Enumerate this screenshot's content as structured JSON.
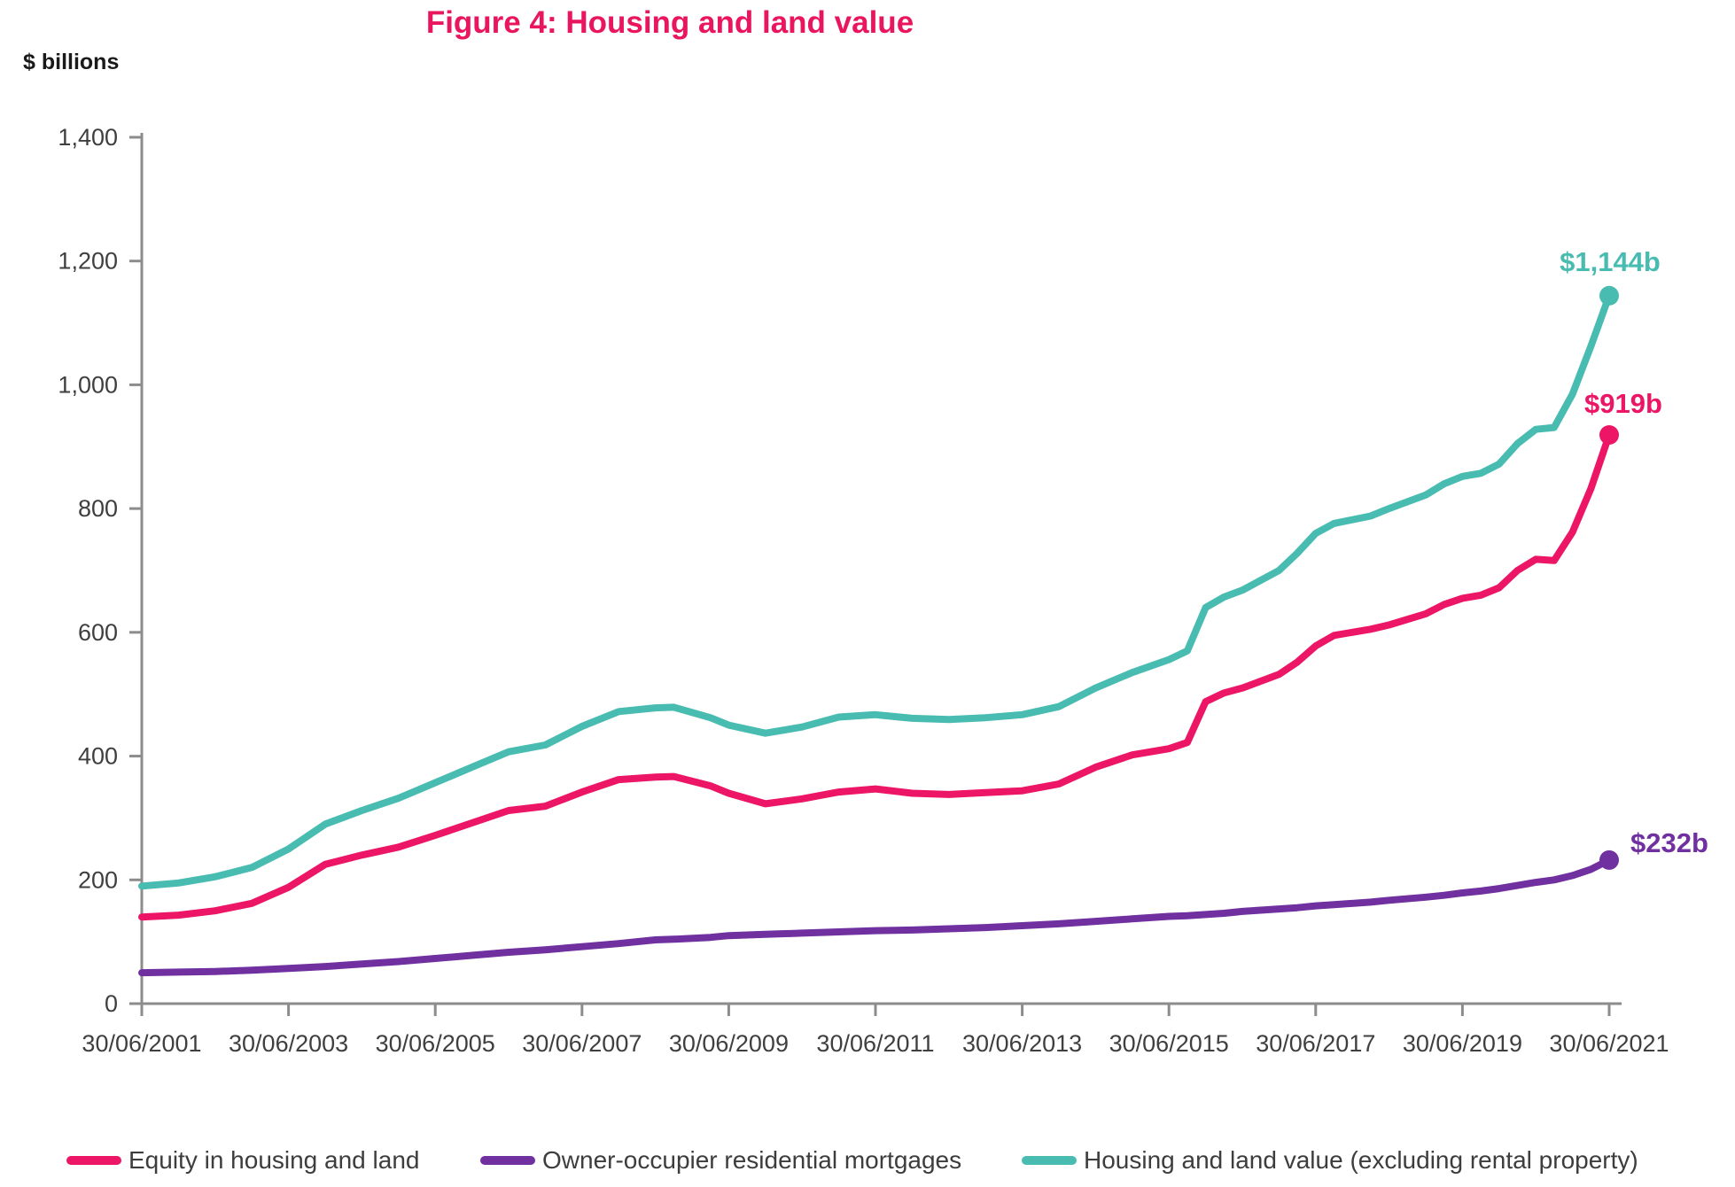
{
  "title": "Figure 4: Housing and land value",
  "colors": {
    "title": "#EA155F",
    "axis": "#8C8C8C",
    "tick_label": "#3F3F3F",
    "equity_pink": "#EC1566",
    "mortgages_purple": "#7030A0",
    "housing_teal": "#49BCB2"
  },
  "chart_data": {
    "type": "line",
    "title": "Figure 4: Housing and land value",
    "xlabel": "",
    "ylabel": "$ billions",
    "ylim": [
      0,
      1400
    ],
    "grid": "off",
    "legend_position": "bottom",
    "y_ticks": [
      0,
      200,
      400,
      600,
      800,
      1000,
      1200,
      1400
    ],
    "y_tick_labels": [
      "0",
      "200",
      "400",
      "600",
      "800",
      "1,000",
      "1,200",
      "1,400"
    ],
    "x_tick_labels": [
      "30/06/2001",
      "30/06/2003",
      "30/06/2005",
      "30/06/2007",
      "30/06/2009",
      "30/06/2011",
      "30/06/2013",
      "30/06/2015",
      "30/06/2017",
      "30/06/2019",
      "30/06/2021"
    ],
    "x_unit": "years since 30/06/2001",
    "x": [
      0,
      0.5,
      1,
      1.5,
      2,
      2.5,
      3,
      3.5,
      4,
      4.5,
      5,
      5.5,
      6,
      6.5,
      7,
      7.25,
      7.75,
      8,
      8.5,
      9,
      9.5,
      10,
      10.5,
      11,
      11.5,
      12,
      12.5,
      13,
      13.5,
      14,
      14.25,
      14.5,
      14.75,
      15,
      15.5,
      15.75,
      16,
      16.25,
      16.75,
      17,
      17.5,
      17.75,
      18,
      18.25,
      18.5,
      18.75,
      19,
      19.25,
      19.5,
      19.75,
      20
    ],
    "series": [
      {
        "key": "equity-in-housing-and-land",
        "name": "Equity in housing and land",
        "color": "#EC1566",
        "end_label": "$919b",
        "end_value": 919,
        "values": [
          140,
          143,
          150,
          162,
          188,
          225,
          240,
          253,
          272,
          292,
          312,
          319,
          342,
          362,
          366,
          367,
          352,
          340,
          323,
          331,
          342,
          347,
          340,
          338,
          341,
          344,
          355,
          382,
          402,
          412,
          422,
          488,
          502,
          510,
          532,
          552,
          578,
          595,
          605,
          612,
          630,
          645,
          655,
          660,
          672,
          700,
          718,
          716,
          762,
          832,
          919
        ]
      },
      {
        "key": "owner-occupier-residential-mortgages",
        "name": "Owner-occupier residential mortgages",
        "color": "#7030A0",
        "end_label": "$232b",
        "end_value": 232,
        "values": [
          50,
          51,
          52,
          54,
          57,
          60,
          64,
          68,
          73,
          78,
          83,
          87,
          92,
          97,
          103,
          104,
          107,
          110,
          112,
          114,
          116,
          118,
          119,
          121,
          123,
          126,
          129,
          133,
          137,
          141,
          142,
          144,
          146,
          149,
          153,
          155,
          158,
          160,
          164,
          167,
          172,
          175,
          179,
          182,
          186,
          191,
          196,
          200,
          207,
          217,
          232
        ]
      },
      {
        "key": "housing-and-land-value",
        "name": "Housing and land value (excluding rental property)",
        "color": "#49BCB2",
        "end_label": "$1,144b",
        "end_value": 1144,
        "values": [
          190,
          195,
          205,
          220,
          250,
          290,
          312,
          332,
          357,
          382,
          407,
          418,
          448,
          472,
          478,
          479,
          462,
          450,
          437,
          447,
          463,
          467,
          461,
          459,
          462,
          467,
          480,
          510,
          535,
          556,
          570,
          640,
          657,
          668,
          700,
          728,
          760,
          776,
          788,
          800,
          822,
          840,
          852,
          857,
          872,
          905,
          928,
          931,
          985,
          1062,
          1144
        ]
      }
    ]
  }
}
